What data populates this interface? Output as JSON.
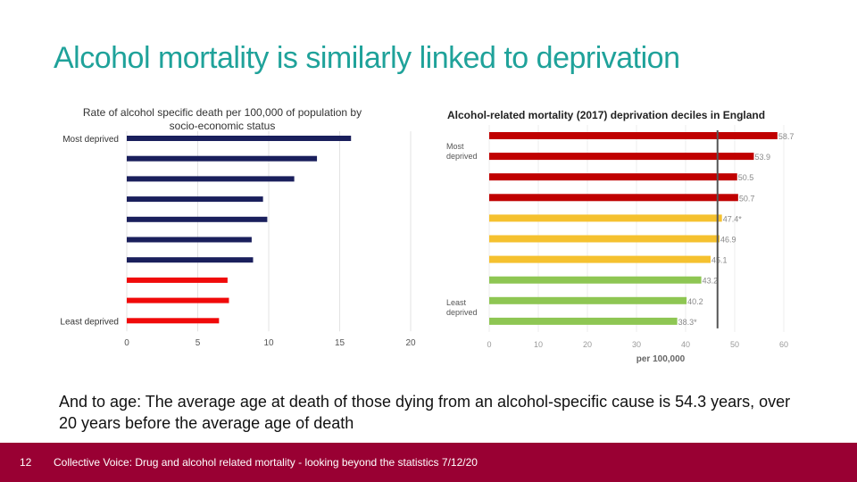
{
  "slide": {
    "title": "Alcohol mortality is similarly linked to deprivation",
    "caption": "And to age: The average age at death of those dying from an alcohol-specific cause is 54.3 years, over 20 years before the average age of death",
    "page_number": "12",
    "footer": "Collective Voice: Drug and alcohol related mortality - looking beyond the statistics 7/12/20"
  },
  "chart_data": [
    {
      "type": "bar",
      "orientation": "horizontal",
      "title_lines": [
        "Rate of alcohol specific death per 100,000 of population by",
        "socio-economic status"
      ],
      "category_labels": [
        "Most deprived",
        "",
        "",
        "",
        "",
        "",
        "",
        "",
        "",
        "Least deprived"
      ],
      "values": [
        15.8,
        13.4,
        11.8,
        9.6,
        9.9,
        8.8,
        8.9,
        7.1,
        7.2,
        6.5
      ],
      "bar_colors": [
        "#1a1f5c",
        "#1a1f5c",
        "#1a1f5c",
        "#1a1f5c",
        "#1a1f5c",
        "#1a1f5c",
        "#1a1f5c",
        "#f00a0a",
        "#f00a0a",
        "#f00a0a"
      ],
      "xlim": [
        0,
        20
      ],
      "xticks": [
        "0",
        "5",
        "10",
        "15",
        "20"
      ],
      "grid": "vertical"
    },
    {
      "type": "bar",
      "orientation": "horizontal",
      "title": "Alcohol-related mortality (2017) deprivation deciles in England",
      "label_most": [
        "Most",
        "deprived"
      ],
      "label_least": [
        "Least",
        "deprived"
      ],
      "values": [
        58.7,
        53.9,
        50.5,
        50.7,
        47.4,
        46.9,
        45.1,
        43.2,
        40.2,
        38.3
      ],
      "value_labels": [
        "58.7",
        "53.9",
        "50.5",
        "50.7",
        "47.4*",
        "46.9",
        "45.1",
        "43.2",
        "40.2",
        "38.3*"
      ],
      "bar_colors": [
        "#c00000",
        "#c00000",
        "#c00000",
        "#c00000",
        "#f5c12f",
        "#f5c12f",
        "#f5c12f",
        "#8ec653",
        "#8ec653",
        "#8ec653"
      ],
      "reference_line": 46.5,
      "xlim": [
        0,
        60
      ],
      "xticks": [
        "0",
        "10",
        "20",
        "30",
        "40",
        "50",
        "60"
      ],
      "xlabel": "per 100,000",
      "grid": "vertical"
    }
  ]
}
